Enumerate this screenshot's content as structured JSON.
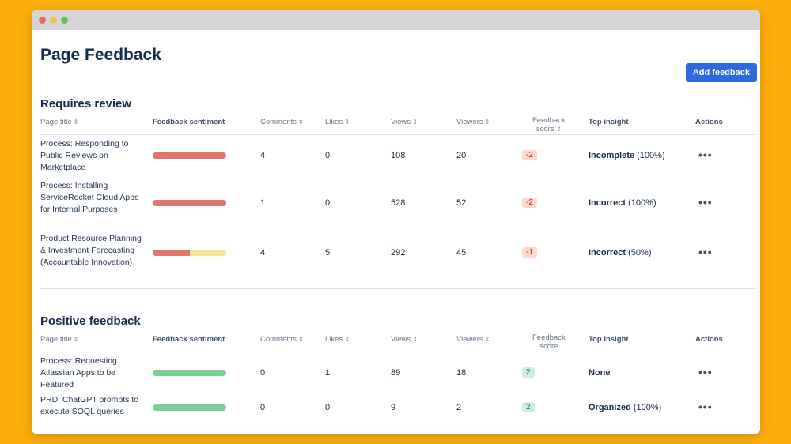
{
  "page": {
    "title": "Page Feedback",
    "add_button": "Add feedback"
  },
  "colors": {
    "background": "#FBAE0C",
    "accent": "#2D6AE0",
    "negative_bar": "#E2766A",
    "neutral_bar": "#F5E39B",
    "positive_bar": "#7DCF9A"
  },
  "columns": {
    "page_title": "Page title",
    "sentiment": "Feedback sentiment",
    "comments": "Comments",
    "likes": "Likes",
    "views": "Views",
    "viewers": "Viewers",
    "score_line1": "Feedback",
    "score_line2": "score",
    "top_insight": "Top insight",
    "actions": "Actions"
  },
  "requires_review": {
    "title": "Requires review",
    "rows": [
      {
        "page": "Process: Responding to Public Reviews on Marketplace",
        "sentiment_negative": 1.0,
        "comments": "4",
        "likes": "0",
        "views": "108",
        "viewers": "20",
        "score": "-2",
        "insight_bold": "Incomplete",
        "insight_pct": "(100%)",
        "actions": "•••"
      },
      {
        "page": "Process: Installing ServiceRocket Cloud Apps for Internal Purposes",
        "sentiment_negative": 1.0,
        "comments": "1",
        "likes": "0",
        "views": "528",
        "viewers": "52",
        "score": "-2",
        "insight_bold": "Incorrect",
        "insight_pct": "(100%)",
        "actions": "•••"
      },
      {
        "page": "Product Resource Planning & Investment Forecasting (Accountable Innovation)",
        "sentiment_negative": 0.5,
        "comments": "4",
        "likes": "5",
        "views": "292",
        "viewers": "45",
        "score": "-1",
        "insight_bold": "Incorrect",
        "insight_pct": "(50%)",
        "actions": "•••"
      }
    ]
  },
  "positive_feedback": {
    "title": "Positive feedback",
    "rows": [
      {
        "page": "Process: Requesting Atlassian Apps to be Featured",
        "sentiment_positive": 1.0,
        "comments": "0",
        "likes": "1",
        "views": "89",
        "viewers": "18",
        "score": "2",
        "insight_bold": "None",
        "insight_pct": "",
        "actions": "•••"
      },
      {
        "page": "PRD: ChatGPT prompts to execute SOQL queries",
        "sentiment_positive": 1.0,
        "comments": "0",
        "likes": "0",
        "views": "9",
        "viewers": "2",
        "score": "2",
        "insight_bold": "Organized",
        "insight_pct": "(100%)",
        "actions": "•••"
      }
    ]
  }
}
